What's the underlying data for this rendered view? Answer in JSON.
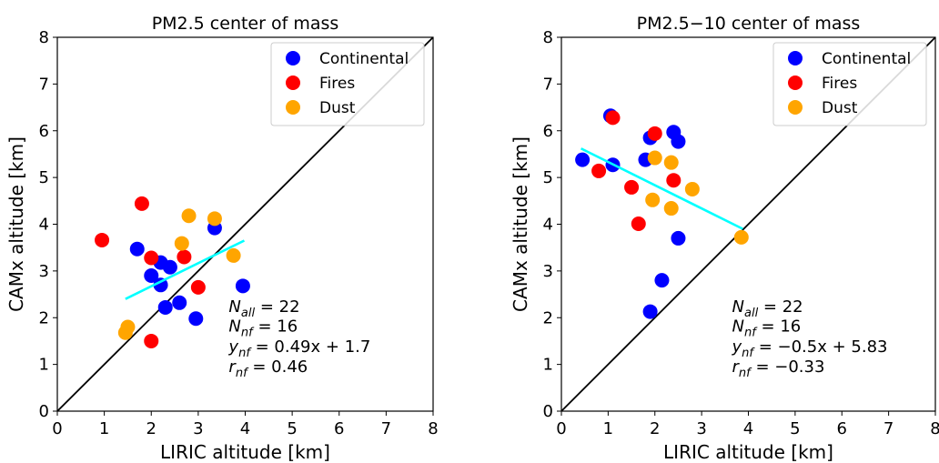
{
  "chart_data": [
    {
      "type": "scatter",
      "title": "PM2.5  center of mass",
      "xlabel": "LIRIC altitude [km]",
      "ylabel": "CAMx altitude [km]",
      "xlim": [
        0,
        8
      ],
      "ylim": [
        0,
        8
      ],
      "xticks": [
        "0",
        "1",
        "2",
        "3",
        "4",
        "5",
        "6",
        "7",
        "8"
      ],
      "yticks": [
        "0",
        "1",
        "2",
        "3",
        "4",
        "5",
        "6",
        "7",
        "8"
      ],
      "grid": false,
      "legend_position": "top-right",
      "series": [
        {
          "name": "Continental",
          "color": "#0000ff",
          "points": [
            [
              1.7,
              3.47
            ],
            [
              2.0,
              2.9
            ],
            [
              2.2,
              3.18
            ],
            [
              2.4,
              3.08
            ],
            [
              2.2,
              2.7
            ],
            [
              2.3,
              2.22
            ],
            [
              2.6,
              2.32
            ],
            [
              2.95,
              1.98
            ],
            [
              3.35,
              3.92
            ],
            [
              3.95,
              2.68
            ]
          ]
        },
        {
          "name": "Fires",
          "color": "#ff0000",
          "points": [
            [
              0.95,
              3.66
            ],
            [
              1.8,
              4.44
            ],
            [
              2.0,
              3.28
            ],
            [
              2.7,
              3.3
            ],
            [
              2.0,
              1.5
            ],
            [
              3.0,
              2.65
            ]
          ]
        },
        {
          "name": "Dust",
          "color": "#ffa500",
          "points": [
            [
              1.45,
              1.68
            ],
            [
              1.5,
              1.8
            ],
            [
              2.65,
              3.59
            ],
            [
              2.8,
              4.18
            ],
            [
              3.35,
              4.12
            ],
            [
              3.75,
              3.33
            ]
          ]
        }
      ],
      "identity_line": {
        "from": [
          0,
          0
        ],
        "to": [
          8,
          8
        ],
        "color": "#000000"
      },
      "fit_line": {
        "from": [
          1.45,
          2.4
        ],
        "to": [
          3.98,
          3.65
        ],
        "color": "#00ffff"
      },
      "annotations": [
        {
          "x": 3.65,
          "y": 2.12,
          "text": "N",
          "sub": "all",
          "rest": " = 22"
        },
        {
          "x": 3.65,
          "y": 1.7,
          "text": "N",
          "sub": "nf",
          "rest": " = 16"
        },
        {
          "x": 3.65,
          "y": 1.27,
          "text": "y",
          "sub": "nf",
          "rest": " = 0.49x + 1.7"
        },
        {
          "x": 3.65,
          "y": 0.84,
          "text": "r",
          "sub": "nf",
          "rest": " = 0.46"
        }
      ]
    },
    {
      "type": "scatter",
      "title": "PM2.5−10  center of mass",
      "xlabel": "LIRIC altitude [km]",
      "ylabel": "CAMx altitude [km]",
      "xlim": [
        0,
        8
      ],
      "ylim": [
        0,
        8
      ],
      "xticks": [
        "0",
        "1",
        "2",
        "3",
        "4",
        "5",
        "6",
        "7",
        "8"
      ],
      "yticks": [
        "0",
        "1",
        "2",
        "3",
        "4",
        "5",
        "6",
        "7",
        "8"
      ],
      "grid": false,
      "legend_position": "top-right",
      "series": [
        {
          "name": "Continental",
          "color": "#0000ff",
          "points": [
            [
              0.45,
              5.38
            ],
            [
              1.05,
              6.32
            ],
            [
              1.1,
              5.27
            ],
            [
              1.8,
              5.38
            ],
            [
              1.9,
              5.85
            ],
            [
              2.4,
              5.97
            ],
            [
              2.5,
              5.77
            ],
            [
              2.5,
              3.7
            ],
            [
              2.15,
              2.8
            ],
            [
              1.9,
              2.13
            ]
          ]
        },
        {
          "name": "Fires",
          "color": "#ff0000",
          "points": [
            [
              0.8,
              5.14
            ],
            [
              1.1,
              6.28
            ],
            [
              1.5,
              4.79
            ],
            [
              2.0,
              5.94
            ],
            [
              1.65,
              4.01
            ],
            [
              2.4,
              4.94
            ]
          ]
        },
        {
          "name": "Dust",
          "color": "#ffa500",
          "points": [
            [
              2.0,
              5.42
            ],
            [
              2.35,
              5.32
            ],
            [
              1.95,
              4.52
            ],
            [
              2.35,
              4.34
            ],
            [
              2.8,
              4.75
            ],
            [
              3.85,
              3.72
            ]
          ]
        }
      ],
      "identity_line": {
        "from": [
          0,
          0
        ],
        "to": [
          8,
          8
        ],
        "color": "#000000"
      },
      "fit_line": {
        "from": [
          0.42,
          5.62
        ],
        "to": [
          3.88,
          3.9
        ],
        "color": "#00ffff"
      },
      "annotations": [
        {
          "x": 3.65,
          "y": 2.12,
          "text": "N",
          "sub": "all",
          "rest": " = 22"
        },
        {
          "x": 3.65,
          "y": 1.7,
          "text": "N",
          "sub": "nf",
          "rest": " = 16"
        },
        {
          "x": 3.65,
          "y": 1.27,
          "text": "y",
          "sub": "nf",
          "rest": " = −0.5x + 5.83"
        },
        {
          "x": 3.65,
          "y": 0.84,
          "text": "r",
          "sub": "nf",
          "rest": " = −0.33"
        }
      ]
    }
  ]
}
